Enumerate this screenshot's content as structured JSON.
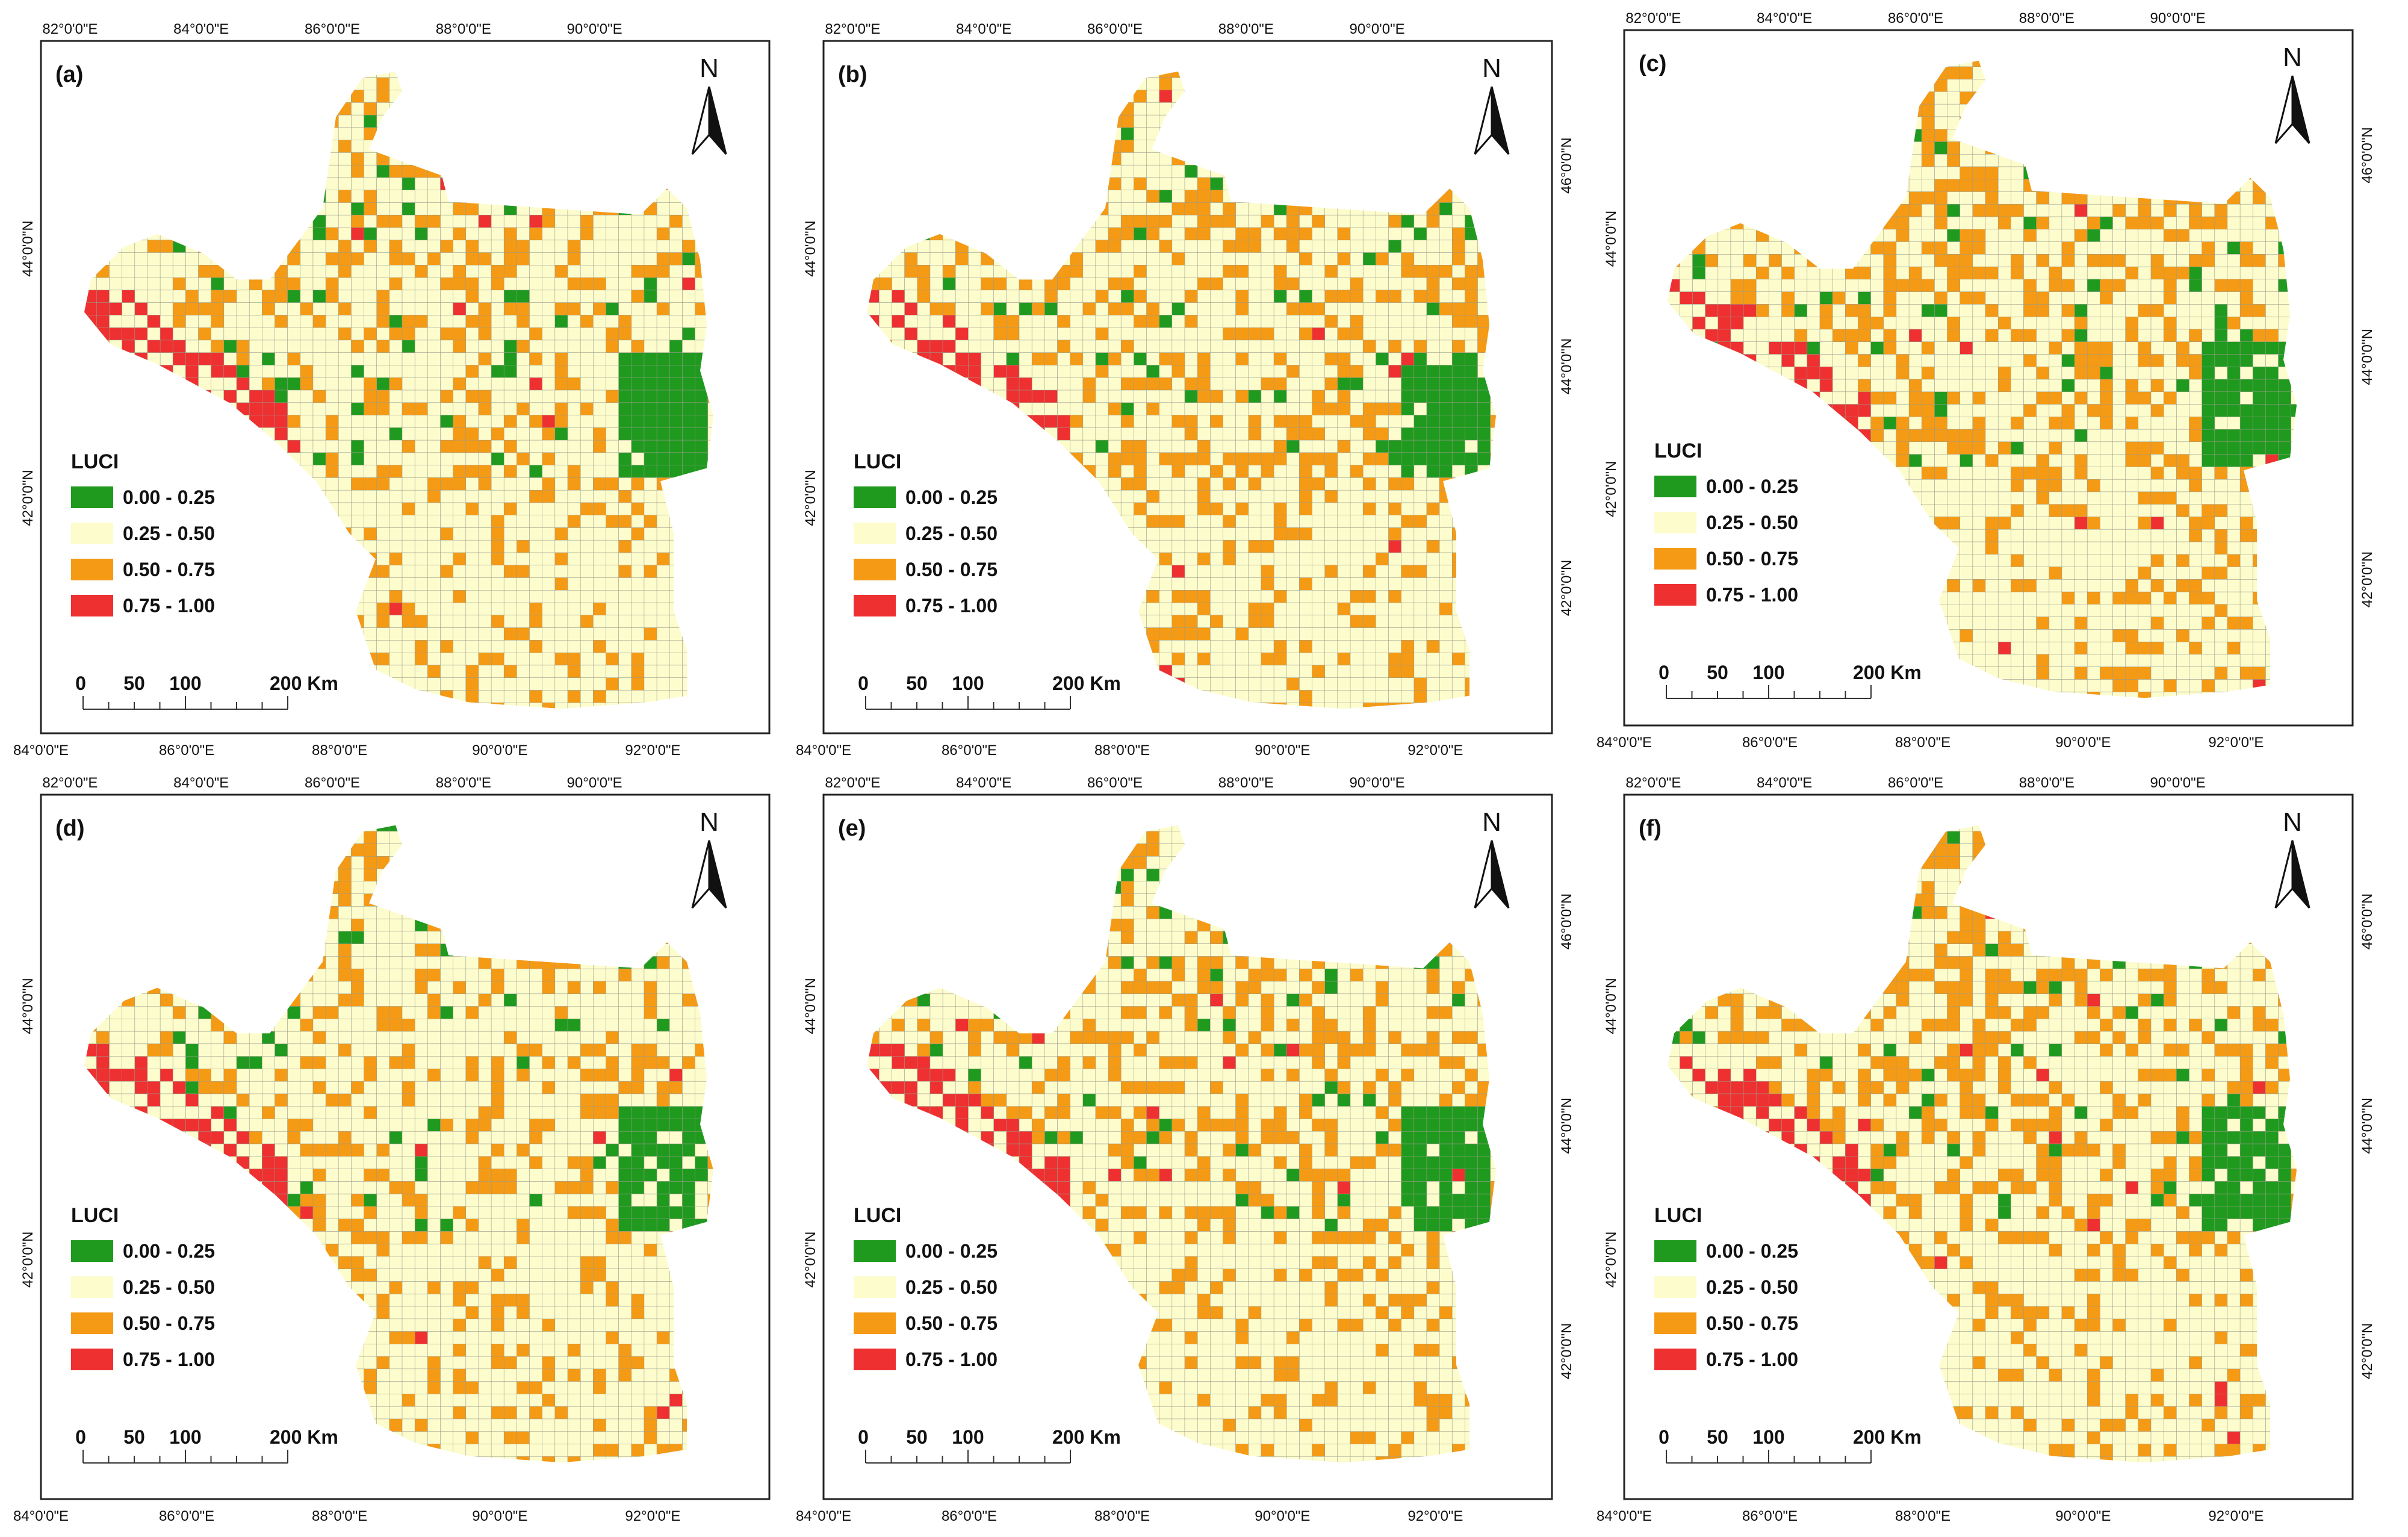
{
  "legend": {
    "title": "LUCI",
    "classes": [
      {
        "range": "0.00 - 0.25",
        "color": "#1f9a1f"
      },
      {
        "range": "0.25 - 0.50",
        "color": "#fdfccd"
      },
      {
        "range": "0.50 - 0.75",
        "color": "#f59a14"
      },
      {
        "range": "0.75 - 1.00",
        "color": "#ee3030"
      }
    ]
  },
  "north_label": "N",
  "scale_bar": {
    "ticks": [
      "0",
      "50",
      "100"
    ],
    "end_label": "200 Km"
  },
  "colors": {
    "boundary": "#555555",
    "grid_line": "#9c9c8a",
    "frame": "#222222"
  },
  "panels": [
    {
      "label": "(a)",
      "top_ticks": [
        "82°0'0\"E",
        "84°0'0\"E",
        "86°0'0\"E",
        "88°0'0\"E",
        "90°0'0\"E"
      ],
      "bottom_ticks": [
        "84°0'0\"E",
        "86°0'0\"E",
        "88°0'0\"E",
        "90°0'0\"E",
        "92°0'0\"E"
      ],
      "left_ticks": [
        "44°0'0\"N",
        "42°0'0\"N"
      ],
      "right_ticks": []
    },
    {
      "label": "(b)",
      "top_ticks": [
        "82°0'0\"E",
        "84°0'0\"E",
        "86°0'0\"E",
        "88°0'0\"E",
        "90°0'0\"E"
      ],
      "bottom_ticks": [
        "84°0'0\"E",
        "86°0'0\"E",
        "88°0'0\"E",
        "90°0'0\"E",
        "92°0'0\"E"
      ],
      "left_ticks": [
        "44°0'0\"N",
        "42°0'0\"N"
      ],
      "right_ticks": [
        "46°0'0\"N",
        "44°0'0\"N",
        "42°0'0\"N"
      ]
    },
    {
      "label": "(c)",
      "top_ticks": [
        "82°0'0\"E",
        "84°0'0\"E",
        "86°0'0\"E",
        "88°0'0\"E",
        "90°0'0\"E"
      ],
      "bottom_ticks": [
        "84°0'0\"E",
        "86°0'0\"E",
        "88°0'0\"E",
        "90°0'0\"E",
        "92°0'0\"E"
      ],
      "left_ticks": [
        "44°0'0\"N",
        "42°0'0\"N"
      ],
      "right_ticks": [
        "46°0'0\"N",
        "44°0'0\"N",
        "42°0'0\"N"
      ]
    },
    {
      "label": "(d)",
      "top_ticks": [
        "82°0'0\"E",
        "84°0'0\"E",
        "86°0'0\"E",
        "88°0'0\"E",
        "90°0'0\"E"
      ],
      "bottom_ticks": [
        "84°0'0\"E",
        "86°0'0\"E",
        "88°0'0\"E",
        "90°0'0\"E",
        "92°0'0\"E"
      ],
      "left_ticks": [
        "44°0'0\"N",
        "42°0'0\"N"
      ],
      "right_ticks": []
    },
    {
      "label": "(e)",
      "top_ticks": [
        "82°0'0\"E",
        "84°0'0\"E",
        "86°0'0\"E",
        "88°0'0\"E",
        "90°0'0\"E"
      ],
      "bottom_ticks": [
        "84°0'0\"E",
        "86°0'0\"E",
        "88°0'0\"E",
        "90°0'0\"E",
        "92°0'0\"E"
      ],
      "left_ticks": [
        "44°0'0\"N",
        "42°0'0\"N"
      ],
      "right_ticks": [
        "46°0'0\"N",
        "44°0'0\"N",
        "42°0'0\"N"
      ]
    },
    {
      "label": "(f)",
      "top_ticks": [
        "82°0'0\"E",
        "84°0'0\"E",
        "86°0'0\"E",
        "88°0'0\"E",
        "90°0'0\"E"
      ],
      "bottom_ticks": [
        "84°0'0\"E",
        "86°0'0\"E",
        "88°0'0\"E",
        "90°0'0\"E",
        "92°0'0\"E"
      ],
      "left_ticks": [
        "44°0'0\"N",
        "42°0'0\"N"
      ],
      "right_ticks": [
        "46°0'0\"N",
        "44°0'0\"N",
        "42°0'0\"N"
      ]
    }
  ]
}
